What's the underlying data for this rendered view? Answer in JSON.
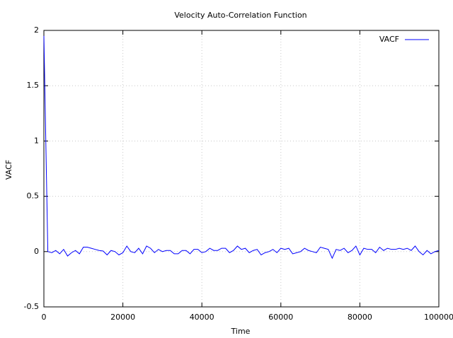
{
  "chart_data": {
    "type": "line",
    "title": "Velocity Auto-Correlation Function",
    "x_label": "Time",
    "y_label": "VACF",
    "x": [
      0,
      1000,
      2000,
      3000,
      4000,
      5000,
      6000,
      7000,
      8000,
      9000,
      10000,
      11000,
      12000,
      13000,
      14000,
      15000,
      16000,
      17000,
      18000,
      19000,
      20000,
      21000,
      22000,
      23000,
      24000,
      25000,
      26000,
      27000,
      28000,
      29000,
      30000,
      31000,
      32000,
      33000,
      34000,
      35000,
      36000,
      37000,
      38000,
      39000,
      40000,
      41000,
      42000,
      43000,
      44000,
      45000,
      46000,
      47000,
      48000,
      49000,
      50000,
      51000,
      52000,
      53000,
      54000,
      55000,
      56000,
      57000,
      58000,
      59000,
      60000,
      61000,
      62000,
      63000,
      64000,
      65000,
      66000,
      67000,
      68000,
      69000,
      70000,
      71000,
      72000,
      73000,
      74000,
      75000,
      76000,
      77000,
      78000,
      79000,
      80000,
      81000,
      82000,
      83000,
      84000,
      85000,
      86000,
      87000,
      88000,
      89000,
      90000,
      91000,
      92000,
      93000,
      94000,
      95000,
      96000,
      97000,
      98000,
      99000,
      100000
    ],
    "series": [
      {
        "name": "VACF",
        "color": "#0000ff",
        "values": [
          1.95,
          0,
          -0.01,
          0.01,
          -0.02,
          0.02,
          -0.04,
          -0.01,
          0.01,
          -0.02,
          0.04,
          0.04,
          0.03,
          0.02,
          0.01,
          0.005,
          -0.03,
          0.01,
          0,
          -0.03,
          -0.01,
          0.05,
          0,
          -0.01,
          0.03,
          -0.02,
          0.05,
          0.03,
          -0.01,
          0.02,
          0,
          0.01,
          0.01,
          -0.02,
          -0.02,
          0.01,
          0.01,
          -0.02,
          0.02,
          0.02,
          -0.01,
          0,
          0.03,
          0.01,
          0.01,
          0.03,
          0.03,
          -0.01,
          0.01,
          0.05,
          0.02,
          0.03,
          -0.01,
          0.01,
          0.02,
          -0.03,
          -0.01,
          0,
          0.02,
          -0.01,
          0.03,
          0.02,
          0.03,
          -0.02,
          -0.01,
          0,
          0.03,
          0.01,
          0,
          -0.01,
          0.04,
          0.03,
          0.02,
          -0.06,
          0.02,
          0.01,
          0.03,
          -0.01,
          0.01,
          0.05,
          -0.03,
          0.03,
          0.02,
          0.02,
          -0.01,
          0.04,
          0.01,
          0.03,
          0.02,
          0.02,
          0.03,
          0.02,
          0.03,
          0.01,
          0.05,
          0,
          -0.03,
          0.01,
          -0.02,
          0,
          0.01
        ]
      }
    ],
    "xlim": [
      0,
      100000
    ],
    "xticks": [
      0,
      20000,
      40000,
      60000,
      80000,
      100000
    ],
    "ylim": [
      -0.5,
      2
    ],
    "yticks": [
      -0.5,
      0,
      0.5,
      1,
      1.5,
      2
    ],
    "grid": true,
    "legend": "top-right"
  }
}
